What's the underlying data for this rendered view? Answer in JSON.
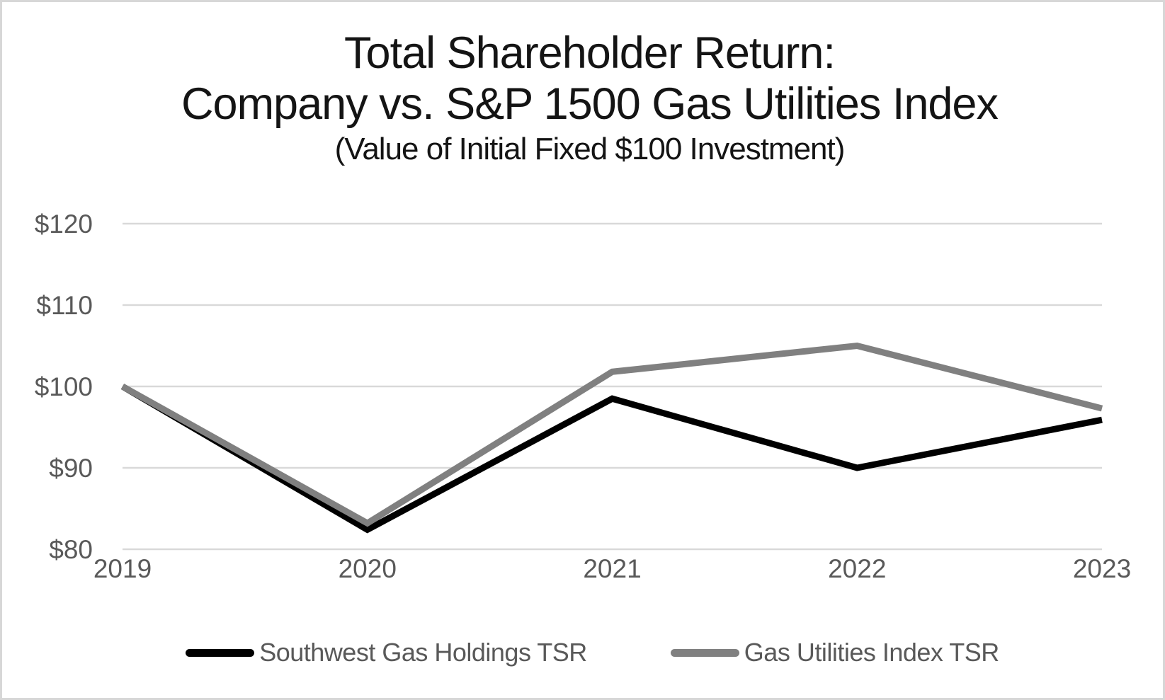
{
  "title": {
    "line1": "Total Shareholder Return:",
    "line2": "Company vs. S&P 1500 Gas Utilities Index",
    "subtitle": "(Value of Initial Fixed $100 Investment)"
  },
  "chart_data": {
    "type": "line",
    "title": "Total Shareholder Return: Company vs. S&P 1500 Gas Utilities Index",
    "subtitle": "(Value of Initial Fixed $100 Investment)",
    "categories": [
      "2019",
      "2020",
      "2021",
      "2022",
      "2023"
    ],
    "series": [
      {
        "name": "Southwest Gas Holdings TSR",
        "color": "#000000",
        "values": [
          100,
          82.4,
          98.5,
          90,
          95.9
        ]
      },
      {
        "name": "Gas Utilities Index TSR",
        "color": "#808080",
        "values": [
          100,
          83.2,
          101.8,
          105,
          97.3
        ]
      }
    ],
    "y_ticks": [
      {
        "label": "$80",
        "value": 80
      },
      {
        "label": "$90",
        "value": 90
      },
      {
        "label": "$100",
        "value": 100
      },
      {
        "label": "$110",
        "value": 110
      },
      {
        "label": "$120",
        "value": 120
      }
    ],
    "ylim": [
      80,
      120
    ],
    "xlabel": "",
    "ylabel": "",
    "grid": "horizontal",
    "gridline_color": "#d9d9d9",
    "tick_label_color": "#595959",
    "legend_position": "bottom"
  }
}
